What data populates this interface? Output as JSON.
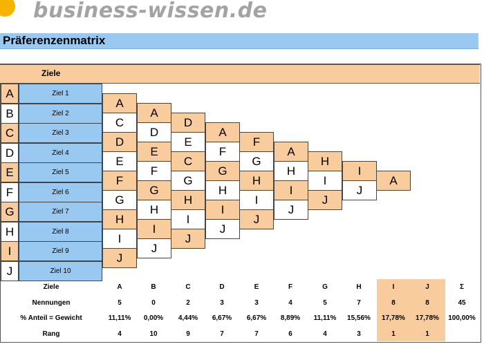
{
  "brand": {
    "logo_text": "business-wissen.de",
    "color": "#f6b300"
  },
  "title": "Präferenzenmatrix",
  "ziele_header": "Ziele",
  "goals": [
    {
      "letter": "A",
      "name": "Ziel 1"
    },
    {
      "letter": "B",
      "name": "Ziel 2"
    },
    {
      "letter": "C",
      "name": "Ziel 3"
    },
    {
      "letter": "D",
      "name": "Ziel 4"
    },
    {
      "letter": "E",
      "name": "Ziel 5"
    },
    {
      "letter": "F",
      "name": "Ziel 6"
    },
    {
      "letter": "G",
      "name": "Ziel 7"
    },
    {
      "letter": "H",
      "name": "Ziel 8"
    },
    {
      "letter": "I",
      "name": "Ziel 9"
    },
    {
      "letter": "J",
      "name": "Ziel 10"
    }
  ],
  "matrix_columns": [
    [
      "A",
      "C",
      "D",
      "E",
      "F",
      "G",
      "H",
      "I",
      "J"
    ],
    [
      "A",
      "D",
      "E",
      "F",
      "G",
      "H",
      "I",
      "J"
    ],
    [
      "D",
      "E",
      "C",
      "G",
      "H",
      "I",
      "J"
    ],
    [
      "A",
      "F",
      "G",
      "H",
      "I",
      "J"
    ],
    [
      "F",
      "G",
      "H",
      "I",
      "J"
    ],
    [
      "A",
      "H",
      "I",
      "J"
    ],
    [
      "H",
      "I",
      "J"
    ],
    [
      "I",
      "J"
    ],
    [
      "A"
    ]
  ],
  "summary": {
    "labels": [
      "Ziele",
      "Nennungen",
      "% Anteil = Gewicht",
      "Rang"
    ],
    "columns": [
      {
        "goal": "A",
        "count": "5",
        "share": "11,11%",
        "rank": "4"
      },
      {
        "goal": "B",
        "count": "0",
        "share": "0,00%",
        "rank": "10"
      },
      {
        "goal": "C",
        "count": "2",
        "share": "4,44%",
        "rank": "9"
      },
      {
        "goal": "D",
        "count": "3",
        "share": "6,67%",
        "rank": "7"
      },
      {
        "goal": "E",
        "count": "3",
        "share": "6,67%",
        "rank": "7"
      },
      {
        "goal": "F",
        "count": "4",
        "share": "8,89%",
        "rank": "6"
      },
      {
        "goal": "G",
        "count": "5",
        "share": "11,11%",
        "rank": "4"
      },
      {
        "goal": "H",
        "count": "7",
        "share": "15,56%",
        "rank": "3"
      },
      {
        "goal": "I",
        "count": "8",
        "share": "17,78%",
        "rank": "1"
      },
      {
        "goal": "J",
        "count": "8",
        "share": "17,78%",
        "rank": "1"
      }
    ],
    "total": {
      "symbol": "Σ",
      "count": "45",
      "share": "100,00%"
    }
  },
  "colors": {
    "orange": "#f8cc9c",
    "blue": "#99c9f1"
  }
}
